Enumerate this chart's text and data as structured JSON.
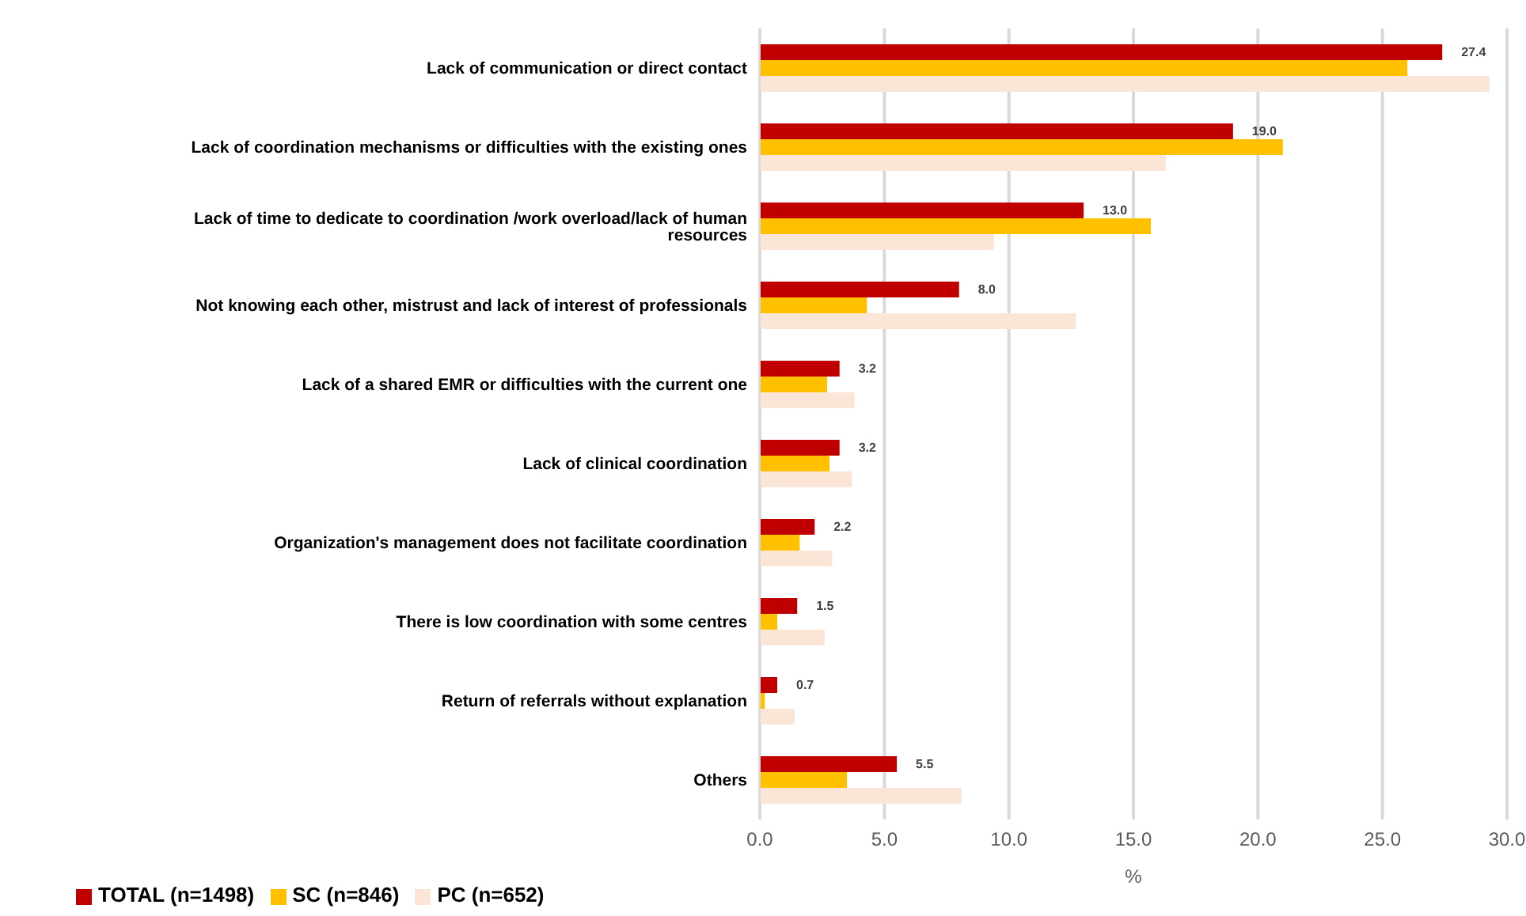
{
  "chart_data": {
    "type": "bar",
    "orientation": "horizontal",
    "xlabel": "%",
    "categories": [
      "Lack of communication or direct contact",
      "Lack of coordination mechanisms or difficulties with the existing ones",
      "Lack of time to dedicate to coordination /work overload/lack of human resources",
      "Not knowing each other, mistrust and lack of interest of professionals",
      "Lack of a shared EMR or difficulties with the current one",
      "Lack of clinical coordination",
      "Organization's management does not  facilitate coordination",
      "There is low coordination with some centres",
      "Return of referrals without explanation",
      "Others"
    ],
    "series": [
      {
        "name": "TOTAL (n=1498)",
        "color": "#c00000",
        "values": [
          27.4,
          19.0,
          13.0,
          8.0,
          3.2,
          3.2,
          2.2,
          1.5,
          0.7,
          5.5
        ],
        "value_labels": [
          "27.4",
          "19.0",
          "13.0",
          "8.0",
          "3.2",
          "3.2",
          "2.2",
          "1.5",
          "0.7",
          "5.5"
        ]
      },
      {
        "name": "SC (n=846)",
        "color": "#ffc000",
        "values": [
          26.0,
          21.0,
          15.7,
          4.3,
          2.7,
          2.8,
          1.6,
          0.7,
          0.2,
          3.5
        ]
      },
      {
        "name": "PC (n=652)",
        "color": "#fbe5d6",
        "values": [
          29.3,
          16.3,
          9.4,
          12.7,
          3.8,
          3.7,
          2.9,
          2.6,
          1.4,
          8.1
        ]
      }
    ],
    "xlim": [
      0,
      30
    ],
    "xticks": [
      {
        "value": 0,
        "label": "0.0"
      },
      {
        "value": 5,
        "label": "5.0"
      },
      {
        "value": 10,
        "label": "10.0"
      },
      {
        "value": 15,
        "label": "15.0"
      },
      {
        "value": 20,
        "label": "20.0"
      },
      {
        "value": 25,
        "label": "25.0"
      },
      {
        "value": 30,
        "label": "30.0"
      }
    ],
    "grid": "x",
    "legend": "bottom left"
  }
}
